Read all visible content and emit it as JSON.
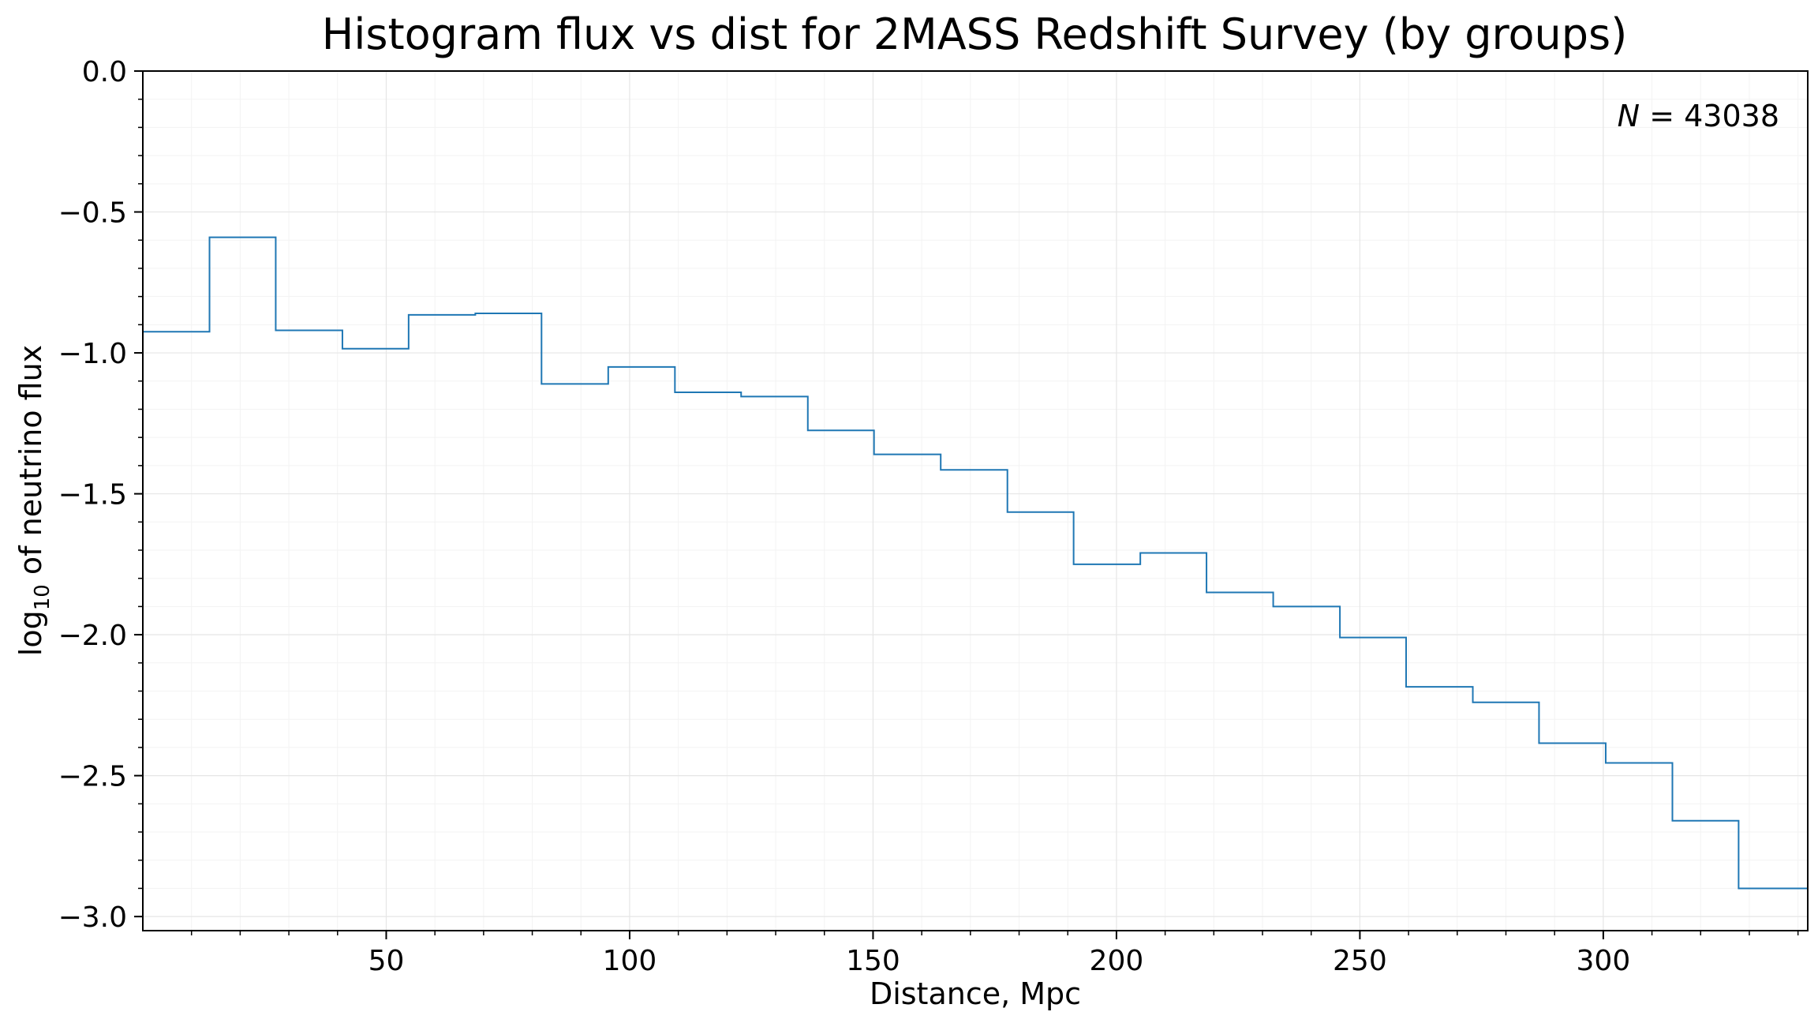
{
  "chart_data": {
    "type": "line",
    "title": "Histogram flux vs dist for 2MASS Redshift Survey (by groups)",
    "xlabel": "Distance, Mpc",
    "ylabel_prefix": "log",
    "ylabel_sub": "10",
    "ylabel_suffix": " of neutrino flux",
    "annotation_var": "N",
    "annotation_eq": " = 43038",
    "xlim": [
      0,
      342
    ],
    "ylim": [
      -3.05,
      0.0
    ],
    "xticks": [
      50,
      100,
      150,
      200,
      250,
      300
    ],
    "xtick_labels": [
      "50",
      "100",
      "150",
      "200",
      "250",
      "300"
    ],
    "yticks": [
      0.0,
      -0.5,
      -1.0,
      -1.5,
      -2.0,
      -2.5,
      -3.0
    ],
    "ytick_labels": [
      "0.0",
      "−0.5",
      "−1.0",
      "−1.5",
      "−2.0",
      "−2.5",
      "−3.0"
    ],
    "grid": true,
    "line_color": "#1f77b4",
    "bin_edges": [
      0,
      13.7,
      27.3,
      41.0,
      54.6,
      68.3,
      81.9,
      95.6,
      109.3,
      122.9,
      136.6,
      150.2,
      163.9,
      177.6,
      191.2,
      204.9,
      218.5,
      232.2,
      245.9,
      259.5,
      273.2,
      286.8,
      300.5,
      314.2,
      327.8,
      342
    ],
    "values": [
      -0.925,
      -0.59,
      -0.92,
      -0.985,
      -0.865,
      -0.86,
      -1.11,
      -1.05,
      -1.14,
      -1.155,
      -1.275,
      -1.36,
      -1.415,
      -1.565,
      -1.75,
      -1.71,
      -1.85,
      -1.9,
      -2.01,
      -2.185,
      -2.24,
      -2.385,
      -2.455,
      -2.66,
      -2.9
    ]
  }
}
